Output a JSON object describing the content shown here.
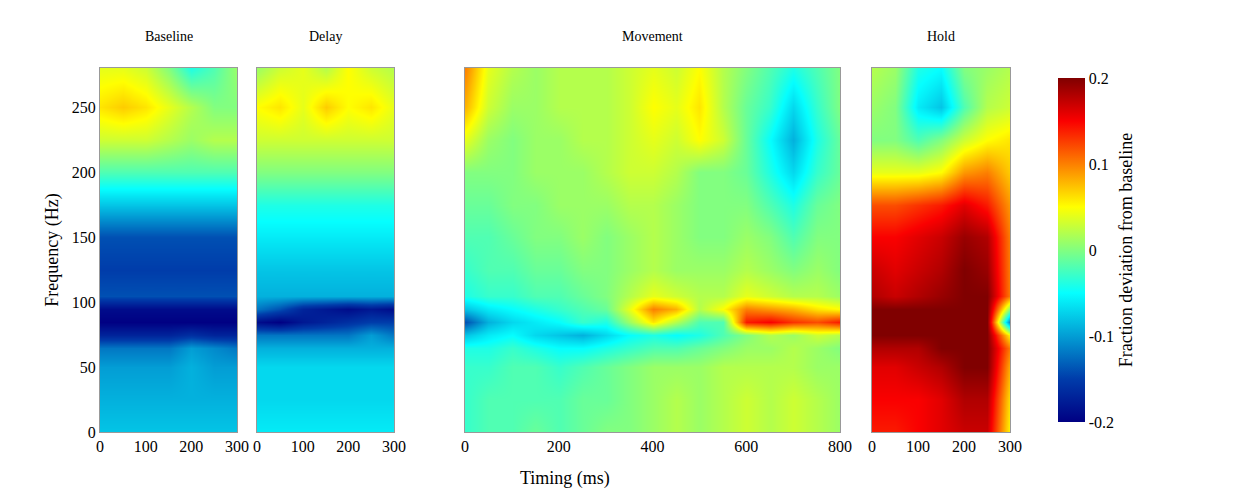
{
  "chart_data": {
    "type": "heatmap",
    "xlabel": "Timing (ms)",
    "ylabel": "Frequency (Hz)",
    "y": [
      0,
      25,
      50,
      65,
      75,
      85,
      95,
      105,
      125,
      150,
      175,
      200,
      225,
      250,
      280
    ],
    "ylim": [
      0,
      280
    ],
    "yticks": [
      0,
      50,
      100,
      150,
      200,
      250
    ],
    "colorbar": {
      "title": "Fraction deviation from baseline",
      "range": [
        -0.2,
        0.2
      ],
      "ticks": [
        0.2,
        0.1,
        0,
        -0.1,
        -0.2
      ],
      "colors": "jet"
    },
    "panels": [
      {
        "title": "Baseline",
        "x": [
          0,
          50,
          100,
          150,
          200,
          250,
          300
        ],
        "xlim": [
          0,
          300
        ],
        "xticks": [
          0,
          100,
          200,
          300
        ],
        "z": [
          [
            -0.08,
            -0.08,
            -0.08,
            -0.08,
            -0.08,
            -0.08,
            -0.08
          ],
          [
            -0.09,
            -0.09,
            -0.09,
            -0.09,
            -0.09,
            -0.09,
            -0.09
          ],
          [
            -0.1,
            -0.1,
            -0.1,
            -0.1,
            -0.09,
            -0.1,
            -0.1
          ],
          [
            -0.12,
            -0.12,
            -0.12,
            -0.12,
            -0.1,
            -0.11,
            -0.12
          ],
          [
            -0.17,
            -0.17,
            -0.17,
            -0.17,
            -0.16,
            -0.17,
            -0.17
          ],
          [
            -0.2,
            -0.2,
            -0.2,
            -0.2,
            -0.2,
            -0.2,
            -0.2
          ],
          [
            -0.19,
            -0.19,
            -0.19,
            -0.19,
            -0.19,
            -0.19,
            -0.19
          ],
          [
            -0.14,
            -0.14,
            -0.14,
            -0.14,
            -0.14,
            -0.14,
            -0.14
          ],
          [
            -0.15,
            -0.15,
            -0.15,
            -0.15,
            -0.15,
            -0.15,
            -0.15
          ],
          [
            -0.14,
            -0.14,
            -0.14,
            -0.14,
            -0.14,
            -0.14,
            -0.14
          ],
          [
            -0.08,
            -0.08,
            -0.08,
            -0.08,
            -0.08,
            -0.08,
            -0.08
          ],
          [
            -0.02,
            -0.02,
            -0.02,
            -0.02,
            -0.02,
            -0.02,
            -0.02
          ],
          [
            0.03,
            0.03,
            0.03,
            0.02,
            0.01,
            0.02,
            0.02
          ],
          [
            0.06,
            0.07,
            0.06,
            0.04,
            0.02,
            0.0,
            0.0
          ],
          [
            0.04,
            0.04,
            0.03,
            0.0,
            -0.04,
            -0.02,
            0.01
          ]
        ]
      },
      {
        "title": "Delay",
        "tick_labels": "x",
        "x": [
          0,
          50,
          100,
          150,
          200,
          250,
          300
        ],
        "xlim": [
          0,
          300
        ],
        "xticks": [
          0,
          100,
          200,
          300
        ],
        "z": [
          [
            -0.06,
            -0.06,
            -0.06,
            -0.06,
            -0.06,
            -0.06,
            -0.06
          ],
          [
            -0.07,
            -0.07,
            -0.07,
            -0.07,
            -0.07,
            -0.07,
            -0.07
          ],
          [
            -0.07,
            -0.07,
            -0.07,
            -0.07,
            -0.07,
            -0.07,
            -0.07
          ],
          [
            -0.09,
            -0.09,
            -0.09,
            -0.09,
            -0.09,
            -0.09,
            -0.09
          ],
          [
            -0.12,
            -0.12,
            -0.12,
            -0.12,
            -0.12,
            -0.1,
            -0.12
          ],
          [
            -0.19,
            -0.2,
            -0.18,
            -0.17,
            -0.16,
            -0.15,
            -0.15
          ],
          [
            -0.12,
            -0.14,
            -0.17,
            -0.18,
            -0.19,
            -0.18,
            -0.19
          ],
          [
            -0.09,
            -0.09,
            -0.09,
            -0.09,
            -0.09,
            -0.09,
            -0.09
          ],
          [
            -0.08,
            -0.08,
            -0.08,
            -0.08,
            -0.08,
            -0.08,
            -0.08
          ],
          [
            -0.06,
            -0.06,
            -0.06,
            -0.06,
            -0.06,
            -0.06,
            -0.06
          ],
          [
            -0.04,
            -0.04,
            -0.04,
            -0.04,
            -0.04,
            -0.04,
            -0.04
          ],
          [
            0.0,
            0.0,
            0.0,
            0.0,
            0.0,
            0.0,
            0.0
          ],
          [
            0.03,
            0.03,
            0.03,
            0.03,
            0.03,
            0.03,
            0.03
          ],
          [
            0.05,
            0.06,
            0.04,
            0.07,
            0.05,
            0.06,
            0.04
          ],
          [
            0.01,
            0.03,
            0.04,
            0.02,
            0.05,
            0.03,
            0.02
          ]
        ]
      },
      {
        "title": "Movement",
        "tick_labels": "x",
        "x": [
          0,
          50,
          100,
          150,
          200,
          250,
          300,
          350,
          400,
          450,
          500,
          550,
          600,
          650,
          700,
          750,
          800
        ],
        "xlim": [
          0,
          800
        ],
        "xticks": [
          0,
          200,
          400,
          600,
          800
        ],
        "z": [
          [
            -0.03,
            -0.02,
            -0.02,
            -0.01,
            -0.02,
            -0.01,
            0,
            0,
            0.01,
            0.02,
            0.01,
            0.02,
            0.03,
            0.02,
            0.03,
            0.02,
            0.01
          ],
          [
            -0.03,
            -0.02,
            -0.02,
            -0.02,
            -0.02,
            -0.01,
            -0.01,
            0,
            0.01,
            0.02,
            0.01,
            0.02,
            0.03,
            0.02,
            0.03,
            0.02,
            0.01
          ],
          [
            -0.03,
            -0.03,
            -0.02,
            -0.02,
            -0.03,
            -0.02,
            -0.01,
            0,
            0.01,
            0.01,
            0.01,
            0.02,
            0.02,
            0.02,
            0.02,
            0.01,
            0.01
          ],
          [
            -0.04,
            -0.04,
            -0.03,
            -0.04,
            -0.05,
            -0.05,
            -0.04,
            -0.03,
            -0.02,
            -0.02,
            -0.01,
            0,
            0.01,
            0.01,
            0.02,
            0.01,
            0
          ],
          [
            -0.08,
            -0.06,
            -0.05,
            -0.07,
            -0.08,
            -0.09,
            -0.07,
            -0.05,
            -0.04,
            -0.05,
            -0.04,
            -0.02,
            0,
            0.02,
            0.01,
            0.03,
            0.02
          ],
          [
            -0.14,
            -0.09,
            -0.07,
            -0.06,
            -0.05,
            -0.03,
            -0.04,
            0.01,
            0.06,
            0.02,
            -0.02,
            -0.02,
            0.14,
            0.15,
            0.13,
            0.12,
            0.14
          ],
          [
            -0.08,
            -0.06,
            -0.05,
            -0.04,
            -0.03,
            -0.02,
            -0.01,
            0.04,
            0.1,
            0.08,
            0.02,
            0.05,
            0.1,
            0.09,
            0.08,
            0.06,
            0.05
          ],
          [
            -0.04,
            -0.03,
            -0.03,
            -0.02,
            -0.02,
            -0.01,
            0,
            0.02,
            0.04,
            0.03,
            0.02,
            0.02,
            0.04,
            0.03,
            0.02,
            0.02,
            0.01
          ],
          [
            -0.03,
            -0.02,
            -0.02,
            -0.01,
            -0.01,
            0,
            0,
            0.01,
            0.02,
            0.01,
            0.01,
            0.01,
            0.02,
            0.01,
            0,
            0.01,
            0
          ],
          [
            -0.02,
            -0.02,
            -0.01,
            0,
            0,
            0.01,
            0,
            0.01,
            0.02,
            0.01,
            0,
            0,
            0.01,
            0,
            -0.02,
            0,
            0
          ],
          [
            -0.01,
            -0.01,
            0,
            0,
            0.01,
            0.01,
            0.01,
            0.02,
            0.02,
            0.01,
            0,
            0,
            0,
            -0.02,
            -0.04,
            -0.01,
            0
          ],
          [
            0,
            0,
            0,
            0.01,
            0.01,
            0.01,
            0.02,
            0.03,
            0.03,
            0.02,
            0,
            0,
            -0.01,
            -0.04,
            -0.07,
            -0.03,
            -0.01
          ],
          [
            0.04,
            0.01,
            0,
            0.01,
            0.01,
            0.02,
            0.02,
            0.03,
            0.04,
            0.03,
            0.05,
            0.03,
            -0.01,
            -0.05,
            -0.09,
            -0.04,
            -0.01
          ],
          [
            0.08,
            0.03,
            0.01,
            0.01,
            0.02,
            0.02,
            0.02,
            0.03,
            0.05,
            0.04,
            0.06,
            0.02,
            -0.01,
            -0.03,
            -0.07,
            -0.03,
            0
          ],
          [
            0.1,
            0.04,
            0.02,
            0.01,
            0.02,
            0.02,
            0.02,
            0.03,
            0.04,
            0.03,
            0.05,
            0.02,
            0,
            -0.02,
            -0.04,
            -0.02,
            0
          ]
        ]
      },
      {
        "title": "Hold",
        "tick_labels": "x",
        "x": [
          0,
          50,
          100,
          150,
          200,
          250,
          300
        ],
        "xlim": [
          0,
          300
        ],
        "xticks": [
          0,
          100,
          200,
          300
        ],
        "z": [
          [
            0.14,
            0.14,
            0.15,
            0.16,
            0.17,
            0.17,
            0.05
          ],
          [
            0.15,
            0.15,
            0.15,
            0.16,
            0.18,
            0.18,
            0.06
          ],
          [
            0.16,
            0.16,
            0.17,
            0.18,
            0.2,
            0.2,
            0.08
          ],
          [
            0.18,
            0.18,
            0.18,
            0.2,
            0.2,
            0.2,
            0.1
          ],
          [
            0.2,
            0.2,
            0.2,
            0.2,
            0.2,
            0.2,
            0.05
          ],
          [
            0.2,
            0.2,
            0.2,
            0.2,
            0.2,
            0.2,
            -0.12
          ],
          [
            0.2,
            0.2,
            0.2,
            0.2,
            0.2,
            0.2,
            0.0
          ],
          [
            0.18,
            0.17,
            0.18,
            0.19,
            0.2,
            0.2,
            0.1
          ],
          [
            0.17,
            0.16,
            0.17,
            0.18,
            0.2,
            0.19,
            0.1
          ],
          [
            0.15,
            0.15,
            0.16,
            0.17,
            0.19,
            0.18,
            0.1
          ],
          [
            0.12,
            0.12,
            0.13,
            0.14,
            0.16,
            0.14,
            0.09
          ],
          [
            0.04,
            0.04,
            0.04,
            0.05,
            0.09,
            0.1,
            0.07
          ],
          [
            0.0,
            0.0,
            -0.02,
            0.0,
            0.03,
            0.05,
            0.06
          ],
          [
            0.01,
            0.0,
            -0.06,
            -0.08,
            -0.02,
            0.02,
            0.03
          ],
          [
            0.02,
            0.01,
            -0.04,
            -0.05,
            0.0,
            0.01,
            0.02
          ]
        ]
      }
    ]
  }
}
